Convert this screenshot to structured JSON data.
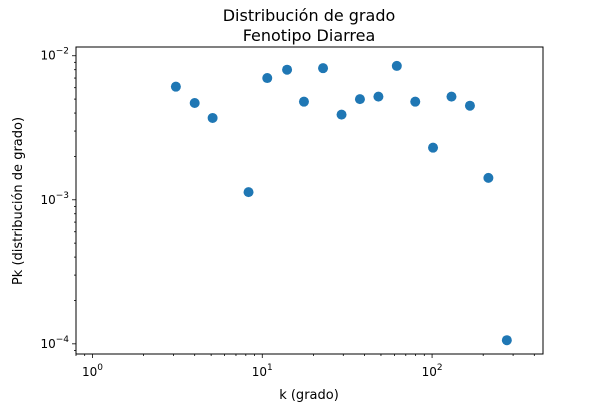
{
  "chart_data": {
    "type": "scatter",
    "title": "Distribución de grado",
    "subtitle": "Fenotipo Diarrea",
    "xlabel": "k (grado)",
    "ylabel": "Pk (distribución de grado)",
    "xscale": "log",
    "yscale": "log",
    "xlim": [
      0.8,
      450
    ],
    "ylim": [
      8.5e-05,
      0.0115
    ],
    "grid": false,
    "marker_color": "#1f77b4",
    "x_ticks": [
      {
        "value": 1,
        "base": "10",
        "exp": "0"
      },
      {
        "value": 10,
        "base": "10",
        "exp": "1"
      },
      {
        "value": 100,
        "base": "10",
        "exp": "2"
      }
    ],
    "y_ticks": [
      {
        "value": 0.0001,
        "base": "10",
        "exp": "−4"
      },
      {
        "value": 0.001,
        "base": "10",
        "exp": "−3"
      },
      {
        "value": 0.01,
        "base": "10",
        "exp": "−2"
      }
    ],
    "points": [
      {
        "x": 3.1,
        "y": 0.0061
      },
      {
        "x": 4.0,
        "y": 0.0047
      },
      {
        "x": 5.1,
        "y": 0.0037
      },
      {
        "x": 8.3,
        "y": 0.00113
      },
      {
        "x": 10.7,
        "y": 0.007
      },
      {
        "x": 14.0,
        "y": 0.008
      },
      {
        "x": 17.6,
        "y": 0.0048
      },
      {
        "x": 22.8,
        "y": 0.0082
      },
      {
        "x": 29.3,
        "y": 0.0039
      },
      {
        "x": 37.6,
        "y": 0.005
      },
      {
        "x": 48.3,
        "y": 0.0052
      },
      {
        "x": 62.0,
        "y": 0.0085
      },
      {
        "x": 79.6,
        "y": 0.0048
      },
      {
        "x": 101.3,
        "y": 0.0023
      },
      {
        "x": 130.1,
        "y": 0.0052
      },
      {
        "x": 167.1,
        "y": 0.0045
      },
      {
        "x": 214.6,
        "y": 0.00142
      },
      {
        "x": 275.6,
        "y": 0.000106
      }
    ]
  }
}
